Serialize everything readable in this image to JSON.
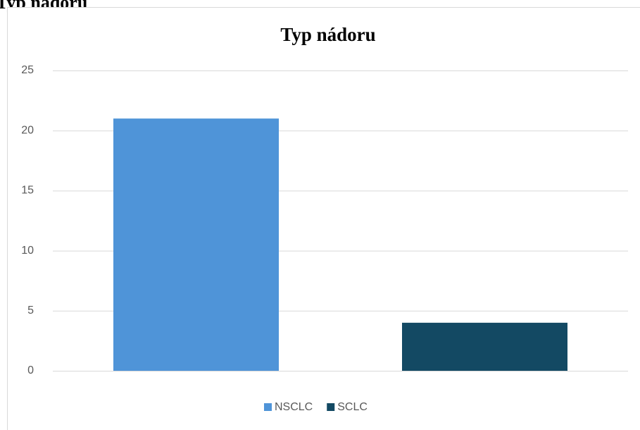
{
  "caption": "Typ nádoru",
  "chart_data": {
    "type": "bar",
    "title": "Typ nádoru",
    "categories": [
      null
    ],
    "series": [
      {
        "name": "NSCLC",
        "color": "#4f94d8",
        "values": [
          21
        ]
      },
      {
        "name": "SCLC",
        "color": "#134963",
        "values": [
          4
        ]
      }
    ],
    "ylim": [
      0,
      25
    ],
    "yticks": [
      0,
      5,
      10,
      15,
      20,
      25
    ],
    "grid": true,
    "legend": "bottom"
  }
}
